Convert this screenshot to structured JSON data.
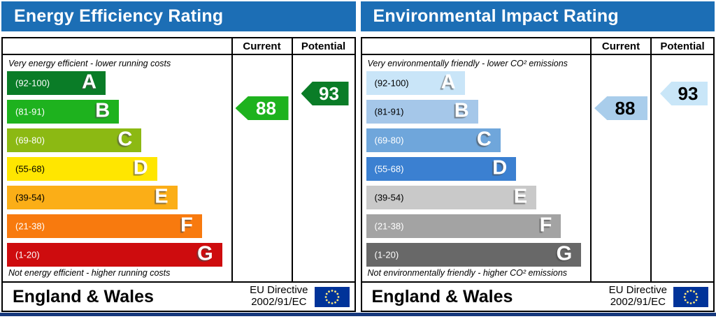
{
  "colors": {
    "header_blue": "#1c6eb5",
    "bottom_strip": "#16387c",
    "flag_blue": "#003399",
    "flag_stars": "#ffe87c"
  },
  "panels": [
    {
      "data_name": "energy-efficiency-panel",
      "title": "Energy Efficiency Rating",
      "columns": {
        "current": "Current",
        "potential": "Potential"
      },
      "caption_top": "Very energy efficient - lower running costs",
      "caption_bottom": "Not energy efficient - higher running costs",
      "bands": [
        {
          "letter": "A",
          "range": "(92-100)",
          "color": "#0a7c27",
          "range_text_color": "#ffffff",
          "width_pct": 44
        },
        {
          "letter": "B",
          "range": "(81-91)",
          "color": "#1eb21e",
          "range_text_color": "#ffffff",
          "width_pct": 50
        },
        {
          "letter": "C",
          "range": "(69-80)",
          "color": "#8cb913",
          "range_text_color": "#ffffff",
          "width_pct": 60
        },
        {
          "letter": "D",
          "range": "(55-68)",
          "color": "#ffe600",
          "range_text_color": "#000000",
          "width_pct": 67
        },
        {
          "letter": "E",
          "range": "(39-54)",
          "color": "#fbae17",
          "range_text_color": "#000000",
          "width_pct": 76
        },
        {
          "letter": "F",
          "range": "(21-38)",
          "color": "#f87a0e",
          "range_text_color": "#ffffff",
          "width_pct": 87
        },
        {
          "letter": "G",
          "range": "(1-20)",
          "color": "#ce0c0e",
          "range_text_color": "#ffffff",
          "width_pct": 96
        }
      ],
      "current": {
        "value": "88",
        "color": "#1eb21e",
        "text_color": "#ffffff"
      },
      "potential": {
        "value": "93",
        "color": "#0a7c27",
        "text_color": "#ffffff"
      },
      "footer": {
        "region": "England & Wales",
        "directive_line1": "EU Directive",
        "directive_line2": "2002/91/EC"
      }
    },
    {
      "data_name": "environmental-impact-panel",
      "title": "Environmental Impact Rating",
      "columns": {
        "current": "Current",
        "potential": "Potential"
      },
      "caption_top": "Very environmentally friendly - lower CO² emissions",
      "caption_bottom": "Not environmentally friendly - higher CO² emissions",
      "bands": [
        {
          "letter": "A",
          "range": "(92-100)",
          "color": "#c9e5f8",
          "range_text_color": "#000000",
          "width_pct": 44
        },
        {
          "letter": "B",
          "range": "(81-91)",
          "color": "#a5c7e9",
          "range_text_color": "#000000",
          "width_pct": 50
        },
        {
          "letter": "C",
          "range": "(69-80)",
          "color": "#6fa6db",
          "range_text_color": "#ffffff",
          "width_pct": 60
        },
        {
          "letter": "D",
          "range": "(55-68)",
          "color": "#3b80d1",
          "range_text_color": "#ffffff",
          "width_pct": 67
        },
        {
          "letter": "E",
          "range": "(39-54)",
          "color": "#c9c9c9",
          "range_text_color": "#000000",
          "width_pct": 76
        },
        {
          "letter": "F",
          "range": "(21-38)",
          "color": "#a3a3a3",
          "range_text_color": "#ffffff",
          "width_pct": 87
        },
        {
          "letter": "G",
          "range": "(1-20)",
          "color": "#686868",
          "range_text_color": "#ffffff",
          "width_pct": 96
        }
      ],
      "current": {
        "value": "88",
        "color": "#a9cdeb",
        "text_color": "#000000"
      },
      "potential": {
        "value": "93",
        "color": "#c9e6f8",
        "text_color": "#000000"
      },
      "footer": {
        "region": "England & Wales",
        "directive_line1": "EU Directive",
        "directive_line2": "2002/91/EC"
      }
    }
  ],
  "chart_data": [
    {
      "type": "bar",
      "title": "Energy Efficiency Rating",
      "categories": [
        "A (92-100)",
        "B (81-91)",
        "C (69-80)",
        "D (55-68)",
        "E (39-54)",
        "F (21-38)",
        "G (1-20)"
      ],
      "values": [
        44,
        50,
        60,
        67,
        76,
        87,
        96
      ],
      "values_note": "relative bar widths in % of scale area",
      "current": 88,
      "potential": 93,
      "current_band": "B",
      "potential_band": "A",
      "top_annotation": "Very energy efficient - lower running costs",
      "bottom_annotation": "Not energy efficient - higher running costs"
    },
    {
      "type": "bar",
      "title": "Environmental Impact Rating",
      "categories": [
        "A (92-100)",
        "B (81-91)",
        "C (69-80)",
        "D (55-68)",
        "E (39-54)",
        "F (21-38)",
        "G (1-20)"
      ],
      "values": [
        44,
        50,
        60,
        67,
        76,
        87,
        96
      ],
      "values_note": "relative bar widths in % of scale area",
      "current": 88,
      "potential": 93,
      "current_band": "B",
      "potential_band": "A",
      "top_annotation": "Very environmentally friendly - lower CO² emissions",
      "bottom_annotation": "Not environmentally friendly - higher CO² emissions"
    }
  ]
}
